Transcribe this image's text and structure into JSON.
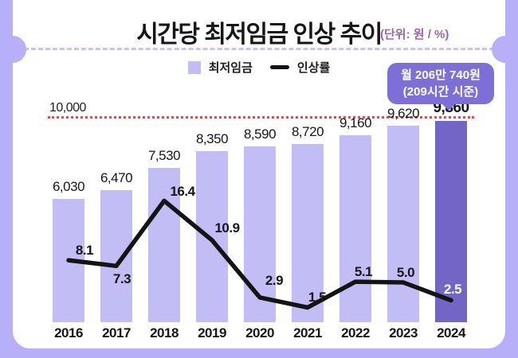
{
  "title": {
    "text": "시간당 최저임금 인상 추이",
    "unit": "(단위: 원 / %)"
  },
  "legend": [
    {
      "label": "최저임금",
      "marker": "bar-swatch"
    },
    {
      "label": "인상률",
      "marker": "line-swatch"
    }
  ],
  "callout": {
    "line1": "월 206만 740원",
    "line2": "(209시간 시준)"
  },
  "reference_line": {
    "label": "10,000",
    "value": 10000
  },
  "chart_data": {
    "type": "bar+line",
    "categories": [
      "2016",
      "2017",
      "2018",
      "2019",
      "2020",
      "2021",
      "2022",
      "2023",
      "2024"
    ],
    "series": [
      {
        "name": "최저임금",
        "type": "bar",
        "values": [
          6030,
          6470,
          7530,
          8350,
          8590,
          8720,
          9160,
          9620,
          9860
        ],
        "labels": [
          "6,030",
          "6,470",
          "7,530",
          "8,350",
          "8,590",
          "8,720",
          "9,160",
          "9,620",
          "9,860"
        ]
      },
      {
        "name": "인상률",
        "type": "line",
        "values": [
          8.1,
          7.3,
          16.4,
          10.9,
          2.9,
          1.5,
          5.1,
          5.0,
          2.5
        ],
        "labels": [
          "8.1",
          "7.3",
          "16.4",
          "10.9",
          "2.9",
          "1.5",
          "5.1",
          "5.0",
          "2.5"
        ]
      }
    ],
    "ylim": [
      0,
      10000
    ],
    "reference_value": 10000,
    "highlight_category": "2024",
    "legend_position": "top-center",
    "grid": false
  },
  "colors": {
    "frame": "#b7b0f8",
    "card": "#ffffff",
    "bar": "#c3bdf5",
    "bar_highlight": "#7265c5",
    "line": "#141414",
    "reference_line": "#e84b4b",
    "callout_bg": "#7e6fd8",
    "unit_text": "#9768a5",
    "divider": "#cfc2e9"
  }
}
